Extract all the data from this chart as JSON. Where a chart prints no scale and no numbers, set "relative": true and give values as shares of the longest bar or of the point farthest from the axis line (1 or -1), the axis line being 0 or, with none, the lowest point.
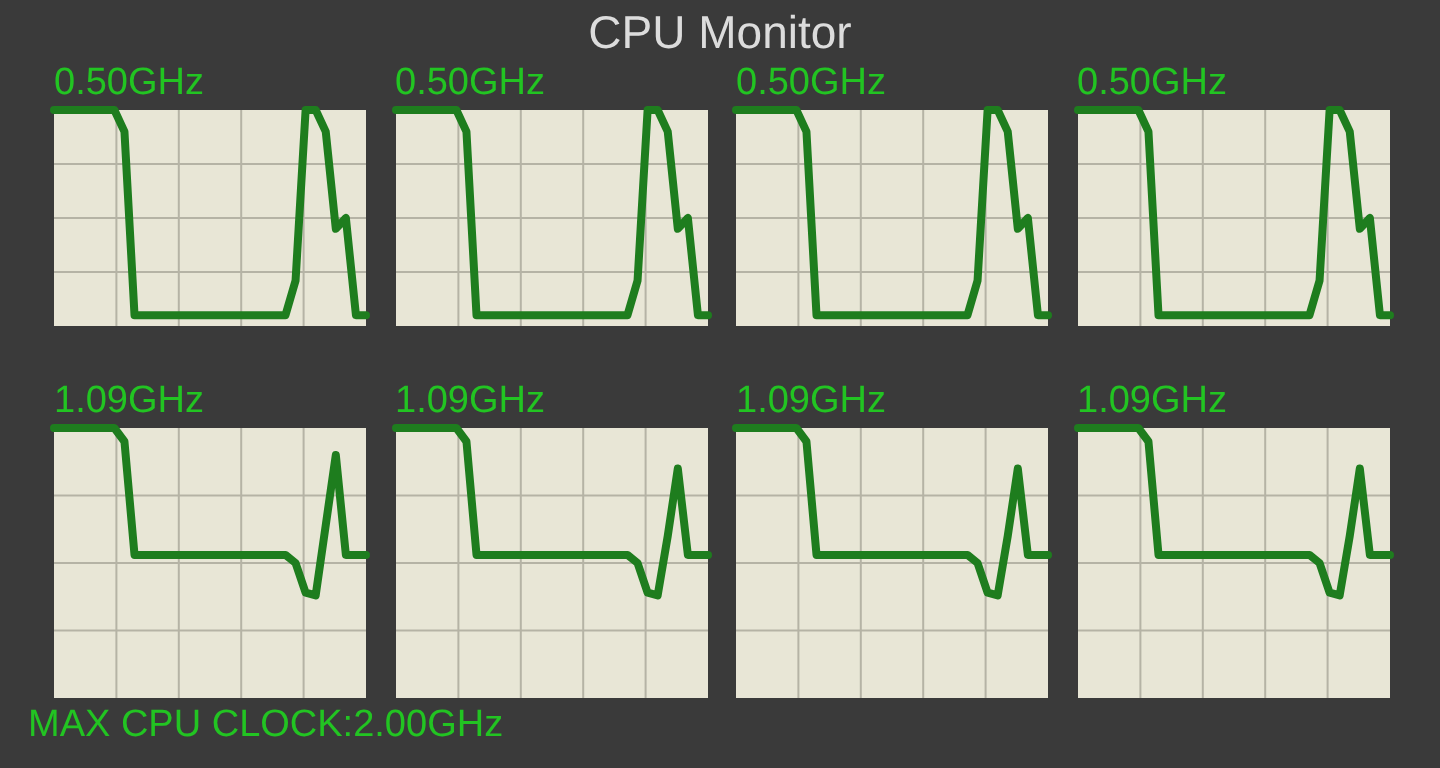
{
  "chart_data": [
    {
      "type": "other",
      "title": "CPU Monitor",
      "annotations": [
        "MAX CPU CLOCK:2.00GHz"
      ]
    },
    {
      "type": "line",
      "title": "0.50GHz",
      "relative": true,
      "grid": true,
      "tick_labels": false,
      "color": "#1e7d1e",
      "categories": [
        null,
        null,
        null,
        null,
        null,
        null,
        null,
        null,
        null,
        null,
        null,
        null,
        null,
        null,
        null,
        null,
        null,
        null,
        null,
        null,
        null,
        null,
        null,
        null,
        null,
        null,
        null,
        null,
        null,
        null,
        null,
        null
      ],
      "values": [
        1,
        1,
        1,
        1,
        1,
        1,
        1,
        0.9,
        0.05,
        0.05,
        0.05,
        0.05,
        0.05,
        0.05,
        0.05,
        0.05,
        0.05,
        0.05,
        0.05,
        0.05,
        0.05,
        0.05,
        0.05,
        0.05,
        0.21,
        1,
        1,
        0.9,
        0.45,
        0.5,
        0.05,
        0.05
      ]
    },
    {
      "type": "line",
      "title": "0.50GHz",
      "relative": true,
      "grid": true,
      "tick_labels": false,
      "color": "#1e7d1e",
      "categories": [
        null,
        null,
        null,
        null,
        null,
        null,
        null,
        null,
        null,
        null,
        null,
        null,
        null,
        null,
        null,
        null,
        null,
        null,
        null,
        null,
        null,
        null,
        null,
        null,
        null,
        null,
        null,
        null,
        null,
        null,
        null,
        null
      ],
      "values": [
        1,
        1,
        1,
        1,
        1,
        1,
        1,
        0.9,
        0.05,
        0.05,
        0.05,
        0.05,
        0.05,
        0.05,
        0.05,
        0.05,
        0.05,
        0.05,
        0.05,
        0.05,
        0.05,
        0.05,
        0.05,
        0.05,
        0.21,
        1,
        1,
        0.9,
        0.45,
        0.5,
        0.05,
        0.05
      ]
    },
    {
      "type": "line",
      "title": "0.50GHz",
      "relative": true,
      "grid": true,
      "tick_labels": false,
      "color": "#1e7d1e",
      "categories": [
        null,
        null,
        null,
        null,
        null,
        null,
        null,
        null,
        null,
        null,
        null,
        null,
        null,
        null,
        null,
        null,
        null,
        null,
        null,
        null,
        null,
        null,
        null,
        null,
        null,
        null,
        null,
        null,
        null,
        null,
        null,
        null
      ],
      "values": [
        1,
        1,
        1,
        1,
        1,
        1,
        1,
        0.9,
        0.05,
        0.05,
        0.05,
        0.05,
        0.05,
        0.05,
        0.05,
        0.05,
        0.05,
        0.05,
        0.05,
        0.05,
        0.05,
        0.05,
        0.05,
        0.05,
        0.21,
        1,
        1,
        0.9,
        0.45,
        0.5,
        0.05,
        0.05
      ]
    },
    {
      "type": "line",
      "title": "0.50GHz",
      "relative": true,
      "grid": true,
      "tick_labels": false,
      "color": "#1e7d1e",
      "categories": [
        null,
        null,
        null,
        null,
        null,
        null,
        null,
        null,
        null,
        null,
        null,
        null,
        null,
        null,
        null,
        null,
        null,
        null,
        null,
        null,
        null,
        null,
        null,
        null,
        null,
        null,
        null,
        null,
        null,
        null,
        null,
        null
      ],
      "values": [
        1,
        1,
        1,
        1,
        1,
        1,
        1,
        0.9,
        0.05,
        0.05,
        0.05,
        0.05,
        0.05,
        0.05,
        0.05,
        0.05,
        0.05,
        0.05,
        0.05,
        0.05,
        0.05,
        0.05,
        0.05,
        0.05,
        0.21,
        1,
        1,
        0.9,
        0.45,
        0.5,
        0.05,
        0.05
      ]
    },
    {
      "type": "line",
      "title": "1.09GHz",
      "relative": true,
      "grid": true,
      "tick_labels": false,
      "color": "#1e7d1e",
      "categories": [
        null,
        null,
        null,
        null,
        null,
        null,
        null,
        null,
        null,
        null,
        null,
        null,
        null,
        null,
        null,
        null,
        null,
        null,
        null,
        null,
        null,
        null,
        null,
        null,
        null,
        null,
        null,
        null,
        null,
        null,
        null,
        null
      ],
      "values": [
        1,
        1,
        1,
        1,
        1,
        1,
        1,
        0.95,
        0.53,
        0.53,
        0.53,
        0.53,
        0.53,
        0.53,
        0.53,
        0.53,
        0.53,
        0.53,
        0.53,
        0.53,
        0.53,
        0.53,
        0.53,
        0.53,
        0.5,
        0.39,
        0.38,
        0.64,
        0.9,
        0.53,
        0.53,
        0.53
      ]
    },
    {
      "type": "line",
      "title": "1.09GHz",
      "relative": true,
      "grid": true,
      "tick_labels": false,
      "color": "#1e7d1e",
      "categories": [
        null,
        null,
        null,
        null,
        null,
        null,
        null,
        null,
        null,
        null,
        null,
        null,
        null,
        null,
        null,
        null,
        null,
        null,
        null,
        null,
        null,
        null,
        null,
        null,
        null,
        null,
        null,
        null,
        null,
        null,
        null,
        null
      ],
      "values": [
        1,
        1,
        1,
        1,
        1,
        1,
        1,
        0.95,
        0.53,
        0.53,
        0.53,
        0.53,
        0.53,
        0.53,
        0.53,
        0.53,
        0.53,
        0.53,
        0.53,
        0.53,
        0.53,
        0.53,
        0.53,
        0.53,
        0.5,
        0.39,
        0.38,
        0.6,
        0.85,
        0.53,
        0.53,
        0.53
      ]
    },
    {
      "type": "line",
      "title": "1.09GHz",
      "relative": true,
      "grid": true,
      "tick_labels": false,
      "color": "#1e7d1e",
      "categories": [
        null,
        null,
        null,
        null,
        null,
        null,
        null,
        null,
        null,
        null,
        null,
        null,
        null,
        null,
        null,
        null,
        null,
        null,
        null,
        null,
        null,
        null,
        null,
        null,
        null,
        null,
        null,
        null,
        null,
        null,
        null,
        null
      ],
      "values": [
        1,
        1,
        1,
        1,
        1,
        1,
        1,
        0.95,
        0.53,
        0.53,
        0.53,
        0.53,
        0.53,
        0.53,
        0.53,
        0.53,
        0.53,
        0.53,
        0.53,
        0.53,
        0.53,
        0.53,
        0.53,
        0.53,
        0.5,
        0.39,
        0.38,
        0.6,
        0.85,
        0.53,
        0.53,
        0.53
      ]
    },
    {
      "type": "line",
      "title": "1.09GHz",
      "relative": true,
      "grid": true,
      "tick_labels": false,
      "color": "#1e7d1e",
      "categories": [
        null,
        null,
        null,
        null,
        null,
        null,
        null,
        null,
        null,
        null,
        null,
        null,
        null,
        null,
        null,
        null,
        null,
        null,
        null,
        null,
        null,
        null,
        null,
        null,
        null,
        null,
        null,
        null,
        null,
        null,
        null,
        null
      ],
      "values": [
        1,
        1,
        1,
        1,
        1,
        1,
        1,
        0.95,
        0.53,
        0.53,
        0.53,
        0.53,
        0.53,
        0.53,
        0.53,
        0.53,
        0.53,
        0.53,
        0.53,
        0.53,
        0.53,
        0.53,
        0.53,
        0.53,
        0.5,
        0.39,
        0.38,
        0.6,
        0.85,
        0.53,
        0.53,
        0.53
      ]
    }
  ]
}
